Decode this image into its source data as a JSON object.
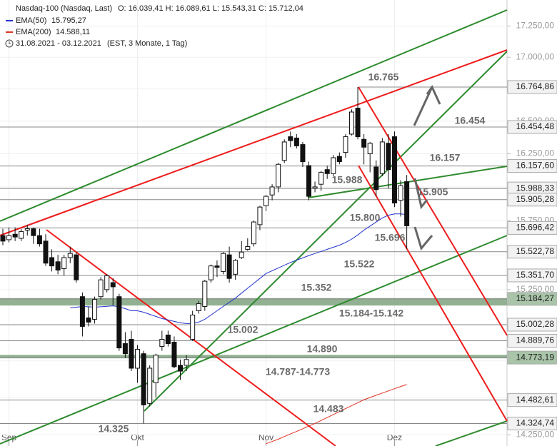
{
  "chart_data": {
    "type": "candlestick",
    "header": {
      "symbol": "Nasdaq-100 (Nasdaq, Last)",
      "ohlc_text": "O: 16.039,41   H: 16.089,61   L: 15.543,31   C: 15.712,04",
      "range": "31.08.2021 - 03.12.2021",
      "range_note": "(EST, 3 Monate, 1 Tag)"
    },
    "categories": [
      null,
      "Sep",
      null,
      null,
      null,
      null,
      null,
      null,
      null,
      null,
      null,
      null,
      null,
      null,
      null,
      null,
      null,
      null,
      null,
      null,
      null,
      null,
      "Okt",
      null,
      null,
      null,
      null,
      null,
      null,
      null,
      null,
      null,
      null,
      null,
      null,
      null,
      null,
      null,
      null,
      null,
      null,
      null,
      null,
      "Nov",
      null,
      null,
      null,
      null,
      null,
      null,
      null,
      null,
      null,
      null,
      null,
      null,
      null,
      null,
      null,
      null,
      null,
      null,
      null,
      null,
      "Dez",
      null,
      null
    ],
    "open": [
      15640,
      15610,
      15650,
      15620,
      15680,
      15690,
      15640,
      15600,
      15480,
      15450,
      15400,
      15480,
      15500,
      15200,
      15050,
      15040,
      15200,
      15250,
      15300,
      15200,
      14870,
      14900,
      14700,
      14800,
      14460,
      14600,
      14850,
      14930,
      14880,
      14720,
      14720,
      14900,
      15100,
      15130,
      15320,
      15420,
      15380,
      15500,
      15360,
      15480,
      15540,
      15580,
      15720,
      15860,
      15940,
      16000,
      16200,
      16380,
      16370,
      16320,
      16160,
      15990,
      16020,
      16130,
      16100,
      16230,
      16260,
      16400,
      16600,
      16360,
      16250,
      16150,
      16100,
      16330,
      16380,
      15900,
      16039.41
    ],
    "high": [
      15690,
      15700,
      15700,
      15690,
      15720,
      15700,
      15690,
      15650,
      15540,
      15500,
      15500,
      15560,
      15520,
      15230,
      15130,
      15200,
      15340,
      15360,
      15330,
      15220,
      14950,
      14960,
      14860,
      14820,
      14720,
      14800,
      14960,
      14960,
      14920,
      14760,
      14790,
      15100,
      15170,
      15320,
      15430,
      15460,
      15520,
      15560,
      15470,
      15600,
      15620,
      15750,
      15860,
      15940,
      16020,
      16180,
      16360,
      16420,
      16400,
      16340,
      16190,
      16040,
      16120,
      16160,
      16240,
      16260,
      16400,
      16590,
      16765,
      16400,
      16340,
      16200,
      16370,
      16400,
      16420,
      16050,
      16089.61
    ],
    "low": [
      15570,
      15590,
      15600,
      15600,
      15640,
      15580,
      15560,
      15420,
      15380,
      15360,
      15350,
      15440,
      15300,
      14920,
      14990,
      15010,
      15180,
      15230,
      15140,
      14820,
      14770,
      14680,
      14600,
      14325,
      14440,
      14500,
      14820,
      14850,
      14700,
      14620,
      14680,
      14890,
      15080,
      15100,
      15300,
      15340,
      15360,
      15300,
      15320,
      15470,
      15530,
      15560,
      15680,
      15820,
      15900,
      15960,
      16180,
      16300,
      16290,
      16150,
      15900,
      15960,
      15970,
      16060,
      16080,
      16170,
      16220,
      16390,
      16360,
      16170,
      16110,
      15930,
      16080,
      15988,
      15850,
      15780,
      15543.31
    ],
    "close": [
      15600,
      15640,
      15630,
      15670,
      15690,
      15640,
      15580,
      15440,
      15420,
      15390,
      15480,
      15510,
      15320,
      14990,
      15020,
      15180,
      15320,
      15350,
      15270,
      14840,
      14800,
      14700,
      14830,
      14450,
      14700,
      14790,
      14900,
      14870,
      14710,
      14680,
      14760,
      15070,
      15150,
      15310,
      15420,
      15410,
      15510,
      15330,
      15460,
      15520,
      15560,
      15740,
      15850,
      15930,
      16000,
      16170,
      16340,
      16350,
      16310,
      16190,
      15930,
      16000,
      16110,
      16100,
      16220,
      16190,
      16380,
      16570,
      16380,
      16300,
      16330,
      15980,
      16340,
      16130,
      15880,
      16010,
      15712.04
    ],
    "series": [
      {
        "name": "EMA(50)",
        "value_label": "15.795,27",
        "color": "#2233cc",
        "values": [
          null,
          null,
          null,
          null,
          null,
          null,
          null,
          null,
          null,
          null,
          null,
          15120,
          15125,
          15130,
          15128,
          15125,
          15128,
          15132,
          15135,
          15128,
          15115,
          15100,
          15100,
          15090,
          15075,
          15060,
          15045,
          15035,
          15025,
          15015,
          15010,
          15010,
          15020,
          15040,
          15070,
          15100,
          15130,
          15160,
          15190,
          15225,
          15260,
          15295,
          15330,
          15365,
          15385,
          15405,
          15425,
          15445,
          15462,
          15478,
          15495,
          15510,
          15525,
          15540,
          15555,
          15570,
          15590,
          15615,
          15645,
          15680,
          15710,
          15740,
          15770,
          15790,
          15800,
          15800,
          15795.27
        ]
      },
      {
        "name": "EMA(200)",
        "value_label": "14.588,11",
        "color": "#dd3322",
        "values": [
          null,
          null,
          null,
          null,
          null,
          null,
          null,
          null,
          null,
          null,
          null,
          null,
          null,
          null,
          null,
          null,
          null,
          null,
          null,
          null,
          null,
          null,
          null,
          null,
          null,
          null,
          null,
          null,
          null,
          null,
          null,
          null,
          null,
          null,
          null,
          null,
          null,
          null,
          null,
          null,
          null,
          null,
          null,
          14190,
          14205,
          14220,
          14238,
          14255,
          14272,
          14290,
          14308,
          14325,
          14345,
          14365,
          14385,
          14405,
          14425,
          14445,
          14465,
          14485,
          14500,
          14515,
          14530,
          14545,
          14560,
          14575,
          14588.11
        ]
      }
    ],
    "ylim": [
      14175,
      17461
    ],
    "log_scale": true,
    "yticks": [
      {
        "value": 14250,
        "label": "14.250,00"
      },
      {
        "value": 14500,
        "label": "14.500,00"
      },
      {
        "value": 14750,
        "label": "14.750,00"
      },
      {
        "value": 15000,
        "label": "15.000,00"
      },
      {
        "value": 15250,
        "label": "15.250,00"
      },
      {
        "value": 15500,
        "label": "15.500,00"
      },
      {
        "value": 15750,
        "label": "15.750,00"
      },
      {
        "value": 16000,
        "label": "16.000,00"
      },
      {
        "value": 16250,
        "label": "16.250,00"
      },
      {
        "value": 16500,
        "label": "16.500,00"
      },
      {
        "value": 16750,
        "label": "16.750,00"
      },
      {
        "value": 17000,
        "label": "17.000,00"
      },
      {
        "value": 17250,
        "label": "17.250,00"
      }
    ],
    "levels": [
      {
        "value": 16764.86,
        "label": "16.764,86"
      },
      {
        "value": 16454.48,
        "label": "16.454,48"
      },
      {
        "value": 16157.6,
        "label": "16.157,60"
      },
      {
        "value": 15988.33,
        "label": "15.988,33"
      },
      {
        "value": 15905.28,
        "label": "15.905,28"
      },
      {
        "value": 15696.42,
        "label": "15.696,42"
      },
      {
        "value": 15522.78,
        "label": "15.522,78"
      },
      {
        "value": 15351.7,
        "label": "15.351,70"
      },
      {
        "value": 15184.27,
        "label": "15.184,27"
      },
      {
        "value": 15002.28,
        "label": "15.002,28"
      },
      {
        "value": 14889.76,
        "label": "14.889,76"
      },
      {
        "value": 14773.19,
        "label": "14.773,19"
      },
      {
        "value": 14482.61,
        "label": "14.482,61"
      },
      {
        "value": 14324.74,
        "label": "14.324,74"
      }
    ],
    "zones": [
      [
        15142,
        15184.27
      ],
      [
        14773.19,
        14787
      ]
    ],
    "annotations": [
      "16.765",
      "16.454",
      "16.157",
      "15.988",
      "15.905",
      "15.800",
      "15.696",
      "15.522",
      "15.352",
      "15.184-15.142",
      "15.002",
      "14.890",
      "14.787-14.773",
      "14.483",
      "14.325"
    ]
  }
}
